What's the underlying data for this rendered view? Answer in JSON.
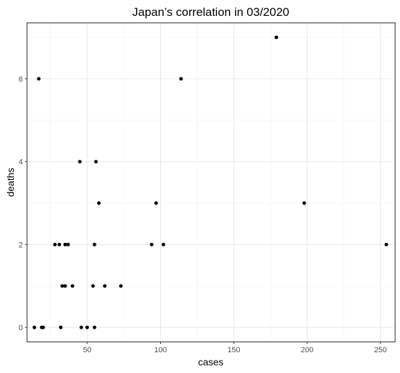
{
  "chart_data": {
    "type": "scatter",
    "title": "Japan’s correlation in 03/2020",
    "xlabel": "cases",
    "ylabel": "deaths",
    "xlim": [
      9,
      260
    ],
    "ylim": [
      -0.35,
      7.35
    ],
    "x_ticks": [
      50,
      100,
      150,
      200,
      250
    ],
    "x_tick_labels": [
      "50",
      "100",
      "150",
      "200",
      "250"
    ],
    "x_minor_ticks": [
      25,
      75,
      125,
      175,
      225
    ],
    "y_ticks": [
      0,
      2,
      4,
      6
    ],
    "y_tick_labels": [
      "0",
      "2",
      "4",
      "6"
    ],
    "y_minor_ticks": [
      1,
      3,
      5,
      7
    ],
    "grid": true,
    "legend": "none",
    "point_color": "#000000",
    "points": [
      {
        "x": 14,
        "y": 0
      },
      {
        "x": 19,
        "y": 0
      },
      {
        "x": 20,
        "y": 0
      },
      {
        "x": 32,
        "y": 0
      },
      {
        "x": 46,
        "y": 0
      },
      {
        "x": 50,
        "y": 0
      },
      {
        "x": 55,
        "y": 0
      },
      {
        "x": 33,
        "y": 1
      },
      {
        "x": 35,
        "y": 1
      },
      {
        "x": 40,
        "y": 1
      },
      {
        "x": 54,
        "y": 1
      },
      {
        "x": 62,
        "y": 1
      },
      {
        "x": 73,
        "y": 1
      },
      {
        "x": 28,
        "y": 2
      },
      {
        "x": 31,
        "y": 2
      },
      {
        "x": 35,
        "y": 2
      },
      {
        "x": 37,
        "y": 2
      },
      {
        "x": 55,
        "y": 2
      },
      {
        "x": 94,
        "y": 2
      },
      {
        "x": 102,
        "y": 2
      },
      {
        "x": 254,
        "y": 2
      },
      {
        "x": 58,
        "y": 3
      },
      {
        "x": 97,
        "y": 3
      },
      {
        "x": 198,
        "y": 3
      },
      {
        "x": 45,
        "y": 4
      },
      {
        "x": 56,
        "y": 4
      },
      {
        "x": 17,
        "y": 6
      },
      {
        "x": 114,
        "y": 6
      },
      {
        "x": 179,
        "y": 7
      }
    ]
  }
}
